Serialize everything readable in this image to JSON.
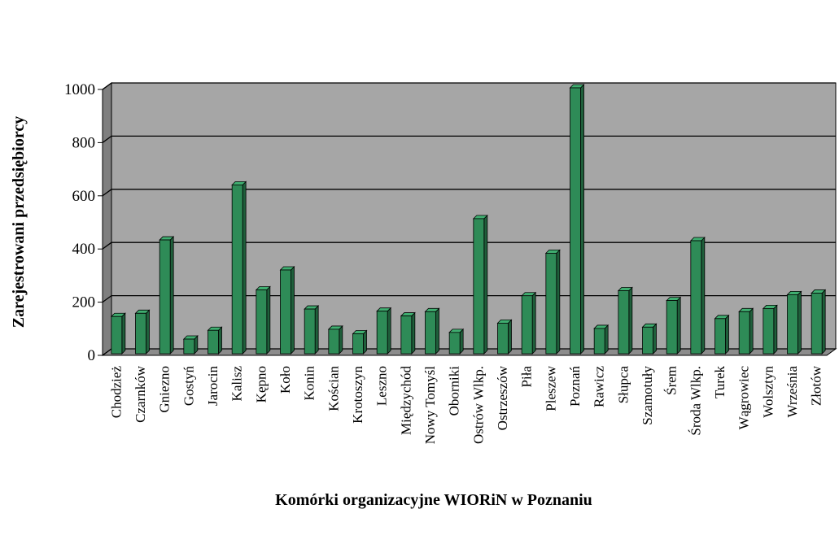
{
  "chart_data": {
    "type": "bar",
    "title": "",
    "xlabel": "Komórki organizacyjne WIORiN w Poznaniu",
    "ylabel": "Zarejestrowani przedsiębiorcy",
    "ylim": [
      0,
      1000
    ],
    "yticks": [
      "0",
      "200",
      "400",
      "600",
      "800",
      "1000"
    ],
    "grid": true,
    "categories": [
      "Chodzież",
      "Czarnków",
      "Gniezno",
      "Gostyń",
      "Jarocin",
      "Kalisz",
      "Kępno",
      "Koło",
      "Konin",
      "Kościan",
      "Krotoszyn",
      "Leszno",
      "Międzychód",
      "Nowy Tomyśl",
      "Oborniki",
      "Ostrów Wlkp.",
      "Ostrzeszów",
      "Piła",
      "Pleszew",
      "Poznań",
      "Rawicz",
      "Słupca",
      "Szamotuły",
      "Śrem",
      "Środa Wlkp.",
      "Turek",
      "Wągrowiec",
      "Wolsztyn",
      "Września",
      "Złotów"
    ],
    "values": [
      140,
      152,
      428,
      55,
      88,
      635,
      240,
      315,
      168,
      92,
      75,
      160,
      142,
      158,
      80,
      508,
      115,
      218,
      378,
      1000,
      95,
      237,
      100,
      200,
      425,
      132,
      158,
      170,
      222,
      228
    ],
    "colors": {
      "bar_front": "#2e8b57",
      "bar_side": "#1f5f3b",
      "bar_top": "#3fae70",
      "plot_back": "#a6a6a6",
      "plot_side_wall": "#7f7f7f",
      "plot_floor": "#8c8c8c",
      "gridline": "#000000"
    }
  }
}
